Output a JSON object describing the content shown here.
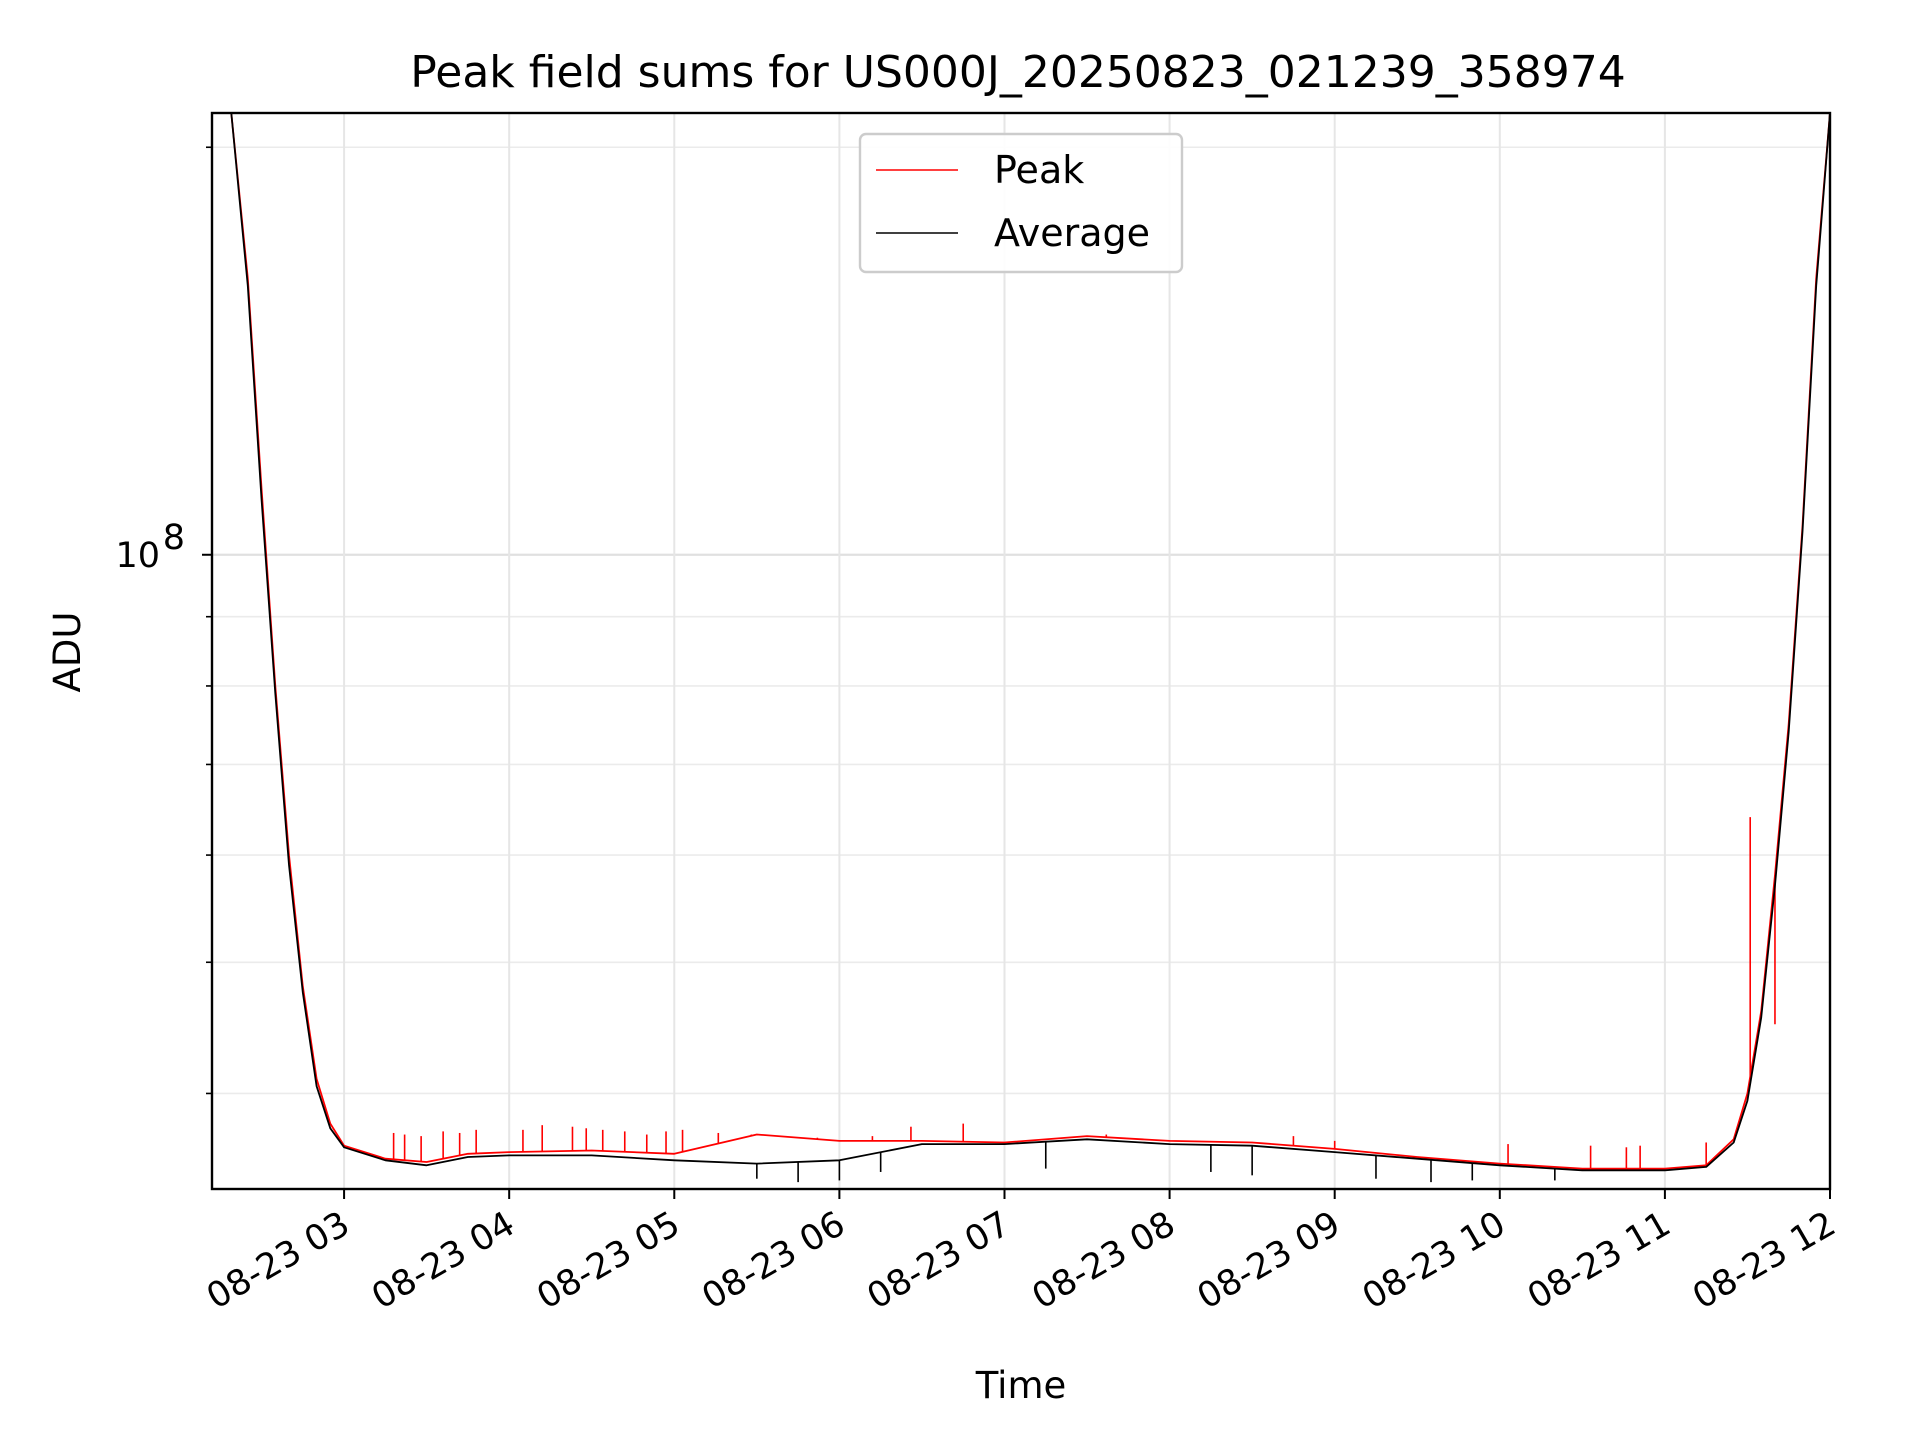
{
  "chart_data": {
    "type": "line",
    "title": "Peak field sums for US000J_20250823_021239_358974",
    "xlabel": "Time",
    "ylabel": "ADU",
    "yscale": "log",
    "ytick_labels": [
      {
        "value": 100000000,
        "base": "10",
        "exp": "8"
      }
    ],
    "xlim": [
      "08-23 02:12",
      "08-23 12:00"
    ],
    "ylim": [
      34000000,
      212000000
    ],
    "x_ticks": [
      {
        "t": "08-23 03:00",
        "label": "08-23 03"
      },
      {
        "t": "08-23 04:00",
        "label": "08-23 04"
      },
      {
        "t": "08-23 05:00",
        "label": "08-23 05"
      },
      {
        "t": "08-23 06:00",
        "label": "08-23 06"
      },
      {
        "t": "08-23 07:00",
        "label": "08-23 07"
      },
      {
        "t": "08-23 08:00",
        "label": "08-23 08"
      },
      {
        "t": "08-23 09:00",
        "label": "08-23 09"
      },
      {
        "t": "08-23 10:00",
        "label": "08-23 10"
      },
      {
        "t": "08-23 11:00",
        "label": "08-23 11"
      },
      {
        "t": "08-23 12:00",
        "label": "08-23 12"
      }
    ],
    "grid": true,
    "legend": "upper center",
    "series": [
      {
        "name": "Peak",
        "color": "#ff0000",
        "points": [
          [
            "08-23 02:19",
            212000000
          ],
          [
            "08-23 02:25",
            160000000
          ],
          [
            "08-23 02:30",
            112000000
          ],
          [
            "08-23 02:35",
            80000000
          ],
          [
            "08-23 02:40",
            60000000
          ],
          [
            "08-23 02:45",
            48000000
          ],
          [
            "08-23 02:50",
            41000000
          ],
          [
            "08-23 02:55",
            38000000
          ],
          [
            "08-23 03:00",
            36600000
          ],
          [
            "08-23 03:15",
            35800000
          ],
          [
            "08-23 03:30",
            35600000
          ],
          [
            "08-23 03:45",
            36100000
          ],
          [
            "08-23 04:00",
            36200000
          ],
          [
            "08-23 04:30",
            36300000
          ],
          [
            "08-23 05:00",
            36100000
          ],
          [
            "08-23 05:30",
            37300000
          ],
          [
            "08-23 06:00",
            36900000
          ],
          [
            "08-23 06:30",
            36900000
          ],
          [
            "08-23 07:00",
            36800000
          ],
          [
            "08-23 07:30",
            37200000
          ],
          [
            "08-23 08:00",
            36900000
          ],
          [
            "08-23 08:30",
            36800000
          ],
          [
            "08-23 09:00",
            36400000
          ],
          [
            "08-23 09:30",
            35900000
          ],
          [
            "08-23 10:00",
            35500000
          ],
          [
            "08-23 10:30",
            35200000
          ],
          [
            "08-23 11:00",
            35200000
          ],
          [
            "08-23 11:15",
            35400000
          ],
          [
            "08-23 11:25",
            37000000
          ],
          [
            "08-23 11:30",
            40000000
          ],
          [
            "08-23 11:35",
            46000000
          ],
          [
            "08-23 11:40",
            58000000
          ],
          [
            "08-23 11:45",
            75000000
          ],
          [
            "08-23 11:50",
            105000000
          ],
          [
            "08-23 11:55",
            160000000
          ],
          [
            "08-23 12:00",
            212000000
          ]
        ],
        "spikes": [
          [
            "08-23 03:18",
            37400000
          ],
          [
            "08-23 03:22",
            37300000
          ],
          [
            "08-23 03:28",
            37200000
          ],
          [
            "08-23 03:36",
            37500000
          ],
          [
            "08-23 03:42",
            37400000
          ],
          [
            "08-23 03:48",
            37600000
          ],
          [
            "08-23 04:05",
            37600000
          ],
          [
            "08-23 04:12",
            37900000
          ],
          [
            "08-23 04:23",
            37800000
          ],
          [
            "08-23 04:28",
            37700000
          ],
          [
            "08-23 04:34",
            37600000
          ],
          [
            "08-23 04:42",
            37500000
          ],
          [
            "08-23 04:50",
            37300000
          ],
          [
            "08-23 04:57",
            37500000
          ],
          [
            "08-23 05:03",
            37600000
          ],
          [
            "08-23 05:16",
            37400000
          ],
          [
            "08-23 05:28",
            37300000
          ],
          [
            "08-23 05:41",
            37200000
          ],
          [
            "08-23 05:52",
            37100000
          ],
          [
            "08-23 06:12",
            37200000
          ],
          [
            "08-23 06:26",
            37800000
          ],
          [
            "08-23 06:45",
            38000000
          ],
          [
            "08-23 07:37",
            37300000
          ],
          [
            "08-23 08:45",
            37200000
          ],
          [
            "08-23 09:00",
            36900000
          ],
          [
            "08-23 10:03",
            36700000
          ],
          [
            "08-23 10:33",
            36600000
          ],
          [
            "08-23 10:46",
            36500000
          ],
          [
            "08-23 10:51",
            36600000
          ],
          [
            "08-23 11:15",
            36800000
          ],
          [
            "08-23 11:31",
            64000000
          ],
          [
            "08-23 11:40",
            45000000
          ]
        ]
      },
      {
        "name": "Average",
        "color": "#000000",
        "points": [
          [
            "08-23 02:19",
            212000000
          ],
          [
            "08-23 02:25",
            158000000
          ],
          [
            "08-23 02:30",
            110000000
          ],
          [
            "08-23 02:35",
            79000000
          ],
          [
            "08-23 02:40",
            59000000
          ],
          [
            "08-23 02:45",
            47500000
          ],
          [
            "08-23 02:50",
            40500000
          ],
          [
            "08-23 02:55",
            37700000
          ],
          [
            "08-23 03:00",
            36500000
          ],
          [
            "08-23 03:15",
            35700000
          ],
          [
            "08-23 03:30",
            35400000
          ],
          [
            "08-23 03:45",
            35900000
          ],
          [
            "08-23 04:00",
            36000000
          ],
          [
            "08-23 04:30",
            36000000
          ],
          [
            "08-23 05:00",
            35700000
          ],
          [
            "08-23 05:30",
            35500000
          ],
          [
            "08-23 06:00",
            35700000
          ],
          [
            "08-23 06:30",
            36700000
          ],
          [
            "08-23 07:00",
            36700000
          ],
          [
            "08-23 07:30",
            37000000
          ],
          [
            "08-23 08:00",
            36700000
          ],
          [
            "08-23 08:30",
            36600000
          ],
          [
            "08-23 09:00",
            36200000
          ],
          [
            "08-23 09:30",
            35800000
          ],
          [
            "08-23 10:00",
            35400000
          ],
          [
            "08-23 10:30",
            35100000
          ],
          [
            "08-23 11:00",
            35100000
          ],
          [
            "08-23 11:15",
            35300000
          ],
          [
            "08-23 11:25",
            36800000
          ],
          [
            "08-23 11:30",
            39500000
          ],
          [
            "08-23 11:35",
            45500000
          ],
          [
            "08-23 11:40",
            57000000
          ],
          [
            "08-23 11:45",
            74000000
          ],
          [
            "08-23 11:50",
            104000000
          ],
          [
            "08-23 11:55",
            158000000
          ],
          [
            "08-23 12:00",
            212000000
          ]
        ],
        "dips": [
          [
            "08-23 05:30",
            34600000
          ],
          [
            "08-23 05:45",
            34400000
          ],
          [
            "08-23 06:00",
            34500000
          ],
          [
            "08-23 06:15",
            35000000
          ],
          [
            "08-23 07:15",
            35200000
          ],
          [
            "08-23 08:15",
            35000000
          ],
          [
            "08-23 08:30",
            34800000
          ],
          [
            "08-23 09:15",
            34600000
          ],
          [
            "08-23 09:35",
            34400000
          ],
          [
            "08-23 09:50",
            34500000
          ],
          [
            "08-23 10:20",
            34500000
          ]
        ]
      }
    ]
  }
}
